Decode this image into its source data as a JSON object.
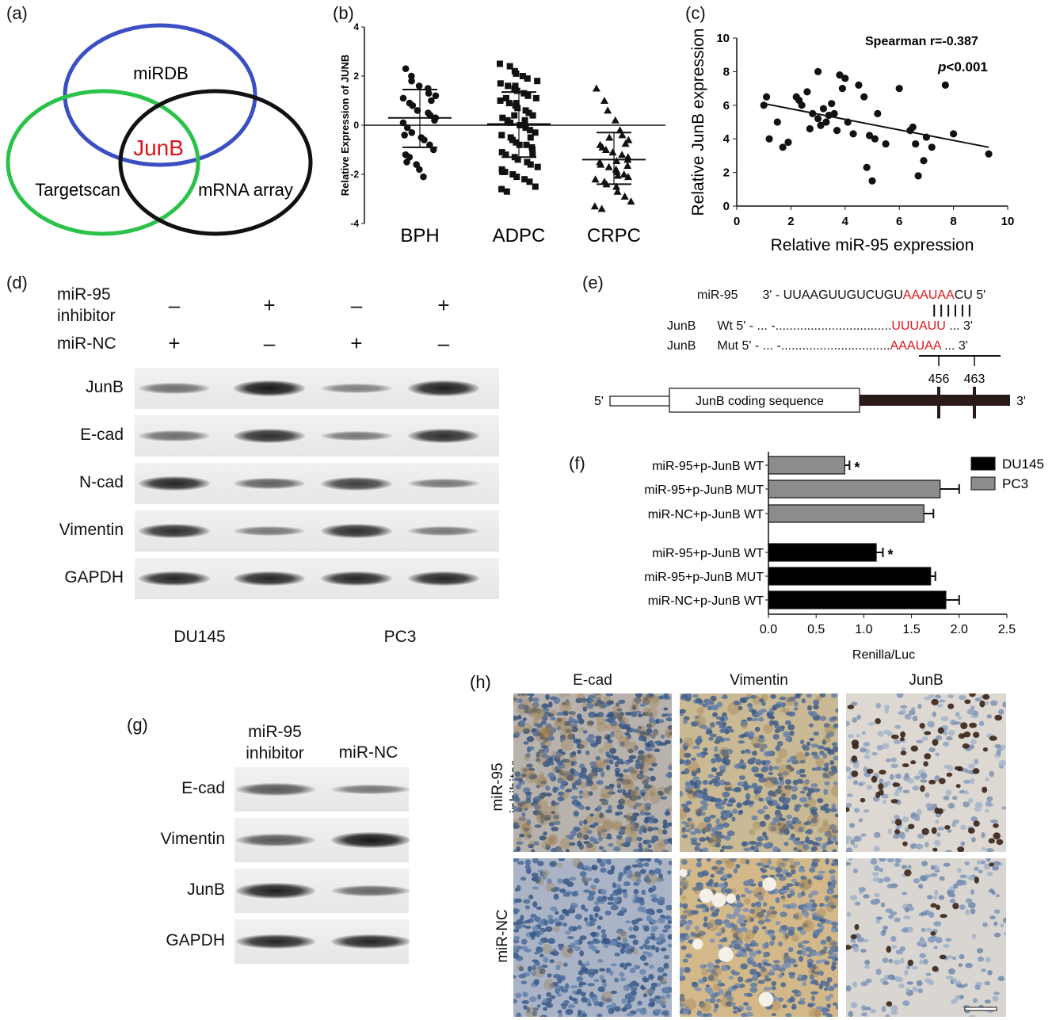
{
  "panels": {
    "a": "(a)",
    "b": "(b)",
    "c": "(c)",
    "d": "(d)",
    "e": "(e)",
    "f": "(f)",
    "g": "(g)",
    "h": "(h)"
  },
  "venn": {
    "labels": [
      "miRDB",
      "Targetscan",
      "mRNA array"
    ],
    "center": "JunB",
    "colors": {
      "miRDB": "#3a4fc4",
      "Targetscan": "#2bc24a",
      "mRNA array": "#111111",
      "center": "#e0141b"
    }
  },
  "chart_data": [
    {
      "type": "scatter",
      "id": "b",
      "ylabel": "Relative Expression of JUNB",
      "ylim": [
        -4,
        4
      ],
      "yticks": [
        "4",
        "2",
        "0",
        "-2",
        "-4"
      ],
      "categories": [
        "BPH",
        "ADPC",
        "CRPC"
      ],
      "markers": [
        "circle",
        "square",
        "triangle"
      ],
      "series": [
        {
          "values": [
            2.3,
            2.0,
            1.8,
            1.6,
            1.5,
            1.3,
            1.2,
            1.1,
            0.9,
            0.8,
            0.6,
            0.5,
            0.4,
            0.2,
            0.1,
            -0.1,
            -0.3,
            -0.5,
            -0.6,
            -0.8,
            -1.0,
            -1.2,
            -1.5,
            -1.6,
            -1.8,
            -2.1,
            1.0,
            0.3,
            -0.4,
            -1.3
          ]
        },
        {
          "values": [
            2.5,
            2.4,
            2.2,
            2.1,
            2.0,
            1.9,
            1.8,
            1.7,
            1.6,
            1.5,
            1.4,
            1.3,
            1.2,
            1.1,
            1.0,
            0.9,
            0.8,
            0.7,
            0.6,
            0.5,
            0.4,
            0.3,
            0.2,
            0.1,
            0.0,
            -0.1,
            -0.2,
            -0.3,
            -0.4,
            -0.5,
            -0.6,
            -0.7,
            -0.8,
            -0.9,
            -1.0,
            -1.1,
            -1.2,
            -1.3,
            -1.4,
            -1.5,
            -1.6,
            -1.7,
            -1.8,
            -1.9,
            -2.0,
            -2.1,
            -2.2,
            -2.3,
            -2.5,
            -2.6,
            -2.7,
            1.6,
            0.9,
            0.2,
            -0.5,
            -1.2,
            -1.9,
            1.1,
            0.4,
            -0.8
          ]
        },
        {
          "values": [
            1.5,
            1.0,
            0.6,
            0.2,
            -0.2,
            -0.4,
            -0.6,
            -0.8,
            -0.9,
            -1.0,
            -1.1,
            -1.2,
            -1.3,
            -1.4,
            -1.5,
            -1.6,
            -1.7,
            -1.8,
            -1.9,
            -2.0,
            -2.1,
            -2.2,
            -2.3,
            -2.4,
            -2.5,
            -2.7,
            -2.9,
            -3.1,
            -3.3,
            -3.4,
            -0.5,
            -1.45,
            -2.05,
            -0.75,
            -1.65
          ]
        }
      ],
      "means": [
        0.3,
        0.05,
        -1.4
      ],
      "sd": [
        [
          1.45,
          -0.9
        ],
        [
          1.35,
          -1.3
        ],
        [
          -0.3,
          -2.4
        ]
      ]
    },
    {
      "type": "scatter",
      "id": "c",
      "title": "Spearman r=-0.387",
      "annotation_p": "p",
      "annotation_rest": "<0.001",
      "xlabel": "Relative miR-95 expression",
      "ylabel": "Relative JunB expression",
      "xlim": [
        0,
        10
      ],
      "ylim": [
        0,
        10
      ],
      "xticks": [
        "0",
        "2",
        "4",
        "6",
        "8",
        "10"
      ],
      "yticks": [
        "10",
        "8",
        "6",
        "4",
        "2",
        "0"
      ],
      "x": [
        1.0,
        1.2,
        1.5,
        1.7,
        2.2,
        2.4,
        2.6,
        2.8,
        3.0,
        3.1,
        3.2,
        3.4,
        3.5,
        3.6,
        3.7,
        3.8,
        3.9,
        4.0,
        4.1,
        4.3,
        4.5,
        4.8,
        5.0,
        5.2,
        5.5,
        6.0,
        6.5,
        6.7,
        7.0,
        7.2,
        7.7,
        8.0,
        9.3,
        1.1,
        2.3,
        3.3,
        4.7,
        4.9,
        5.1,
        6.4,
        6.6,
        6.9,
        2.7,
        3.0,
        1.9
      ],
      "y": [
        6.0,
        4.0,
        5.0,
        3.5,
        6.5,
        6.0,
        6.8,
        5.5,
        8.0,
        4.8,
        5.8,
        5.4,
        6.1,
        5.5,
        4.5,
        7.8,
        7.0,
        7.6,
        5.0,
        4.3,
        7.2,
        2.3,
        1.5,
        5.5,
        3.7,
        7.0,
        4.7,
        1.8,
        4.1,
        3.5,
        7.2,
        4.3,
        3.1,
        6.5,
        6.3,
        5.0,
        6.5,
        4.2,
        4.0,
        4.5,
        3.7,
        2.7,
        4.6,
        5.2,
        3.8
      ],
      "fit": {
        "x": [
          1.0,
          9.3
        ],
        "y": [
          6.1,
          3.5
        ]
      }
    },
    {
      "type": "bar",
      "id": "f",
      "orientation": "horizontal",
      "xlabel": "Renilla/Luc",
      "xlim": [
        0,
        2.5
      ],
      "xticks": [
        "0.0",
        "0.5",
        "1.0",
        "1.5",
        "2.0",
        "2.5"
      ],
      "legend": [
        "DU145",
        "PC3"
      ],
      "legend_placement": "top-right",
      "colors": {
        "DU145": "#000000",
        "PC3": "#8c8c8c"
      },
      "groups": [
        {
          "series": "PC3",
          "categories": [
            "miR-95+p-JunB WT",
            "miR-95+p-JunB MUT",
            "miR-NC+p-JunB WT"
          ],
          "values": [
            0.8,
            1.8,
            1.63
          ],
          "errors": [
            0.05,
            0.2,
            0.1
          ],
          "stars": [
            "*",
            "",
            ""
          ]
        },
        {
          "series": "DU145",
          "categories": [
            "miR-95+p-JunB WT",
            "miR-95+p-JunB MUT",
            "miR-NC+p-JunB WT"
          ],
          "values": [
            1.13,
            1.7,
            1.86
          ],
          "errors": [
            0.07,
            0.05,
            0.14
          ],
          "stars": [
            "*",
            "",
            ""
          ]
        }
      ]
    }
  ],
  "blot_d": {
    "header_row1_label": "miR-95 inhibitor",
    "header_row1_line1": "miR-95",
    "header_row1_line2": "inhibitor",
    "header_row1": [
      "–",
      "+",
      "–",
      "+"
    ],
    "header_row2_label": "miR-NC",
    "header_row2": [
      "+",
      "–",
      "+",
      "–"
    ],
    "rows": [
      {
        "label": "JunB",
        "intensity": [
          0.45,
          1.0,
          0.35,
          0.95
        ]
      },
      {
        "label": "E-cad",
        "intensity": [
          0.45,
          0.85,
          0.4,
          0.85
        ]
      },
      {
        "label": "N-cad",
        "intensity": [
          0.9,
          0.55,
          0.75,
          0.4
        ]
      },
      {
        "label": "Vimentin",
        "intensity": [
          0.85,
          0.4,
          0.85,
          0.4
        ]
      },
      {
        "label": "GAPDH",
        "intensity": [
          0.9,
          0.9,
          0.9,
          0.9
        ]
      }
    ],
    "cell_lines": [
      "DU145",
      "PC3"
    ]
  },
  "sequence_e": {
    "mir_label": "miR-95",
    "mir_prefix": "3' - UUAAGUUGUCUGU",
    "mir_seed": "AAAUAA",
    "mir_suffix": "CU 5'",
    "pairing": "| | | | | |",
    "wt_label": "JunB",
    "wt_prefix": "Wt 5' - ... -.................................",
    "wt_seed": "UUUAUU",
    "wt_suffix": "... 3'",
    "mut_label": "JunB",
    "mut_prefix": "Mut 5' - ... -...............................",
    "mut_seed": "AAAUAA",
    "mut_suffix": "... 3'",
    "pos1": "456",
    "pos2": "463",
    "five_prime": "5'",
    "three_prime": "3'",
    "coding_label": "JunB coding sequence"
  },
  "blot_g": {
    "col1_line1": "miR-95",
    "col1_line2": "inhibitor",
    "col2": "miR-NC",
    "rows": [
      {
        "label": "E-cad",
        "intensity": [
          0.6,
          0.4
        ]
      },
      {
        "label": "Vimentin",
        "intensity": [
          0.6,
          1.0
        ]
      },
      {
        "label": "JunB",
        "intensity": [
          0.95,
          0.5
        ]
      },
      {
        "label": "GAPDH",
        "intensity": [
          0.9,
          0.9
        ]
      }
    ]
  },
  "ihc_h": {
    "columns": [
      "E-cad",
      "Vimentin",
      "JunB"
    ],
    "row1_line1": "miR-95",
    "row1_line2": "inhibitor",
    "row2": "miR-NC"
  }
}
